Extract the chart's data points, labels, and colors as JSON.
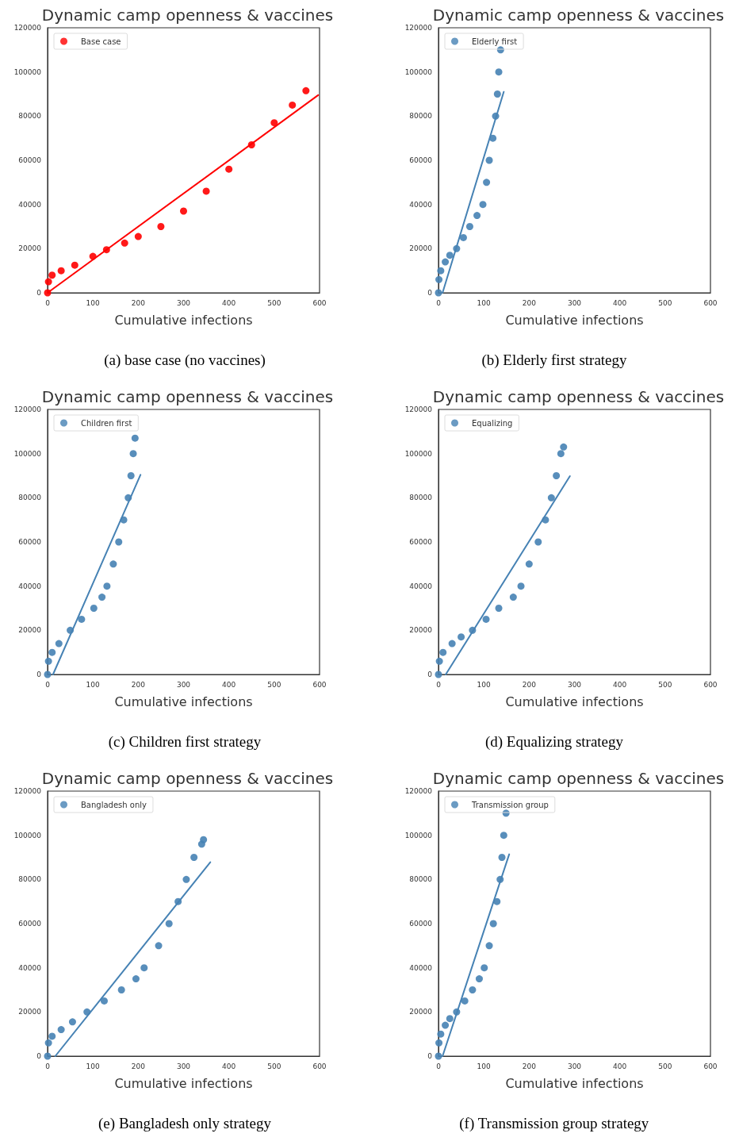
{
  "chart_data": [
    {
      "type": "scatter",
      "title": "Dynamic camp openness & vaccines",
      "xlabel": "Cumulative infections",
      "annotations": [
        "(a) base case (no vaccines)"
      ],
      "xlim": [
        0,
        600
      ],
      "ylim": [
        0,
        120000
      ],
      "xticks": [
        0,
        100,
        200,
        300,
        400,
        500,
        600
      ],
      "yticks": [
        0,
        20000,
        40000,
        60000,
        80000,
        100000,
        120000
      ],
      "grid": false,
      "legend": "top left",
      "marker": "circle",
      "series": [
        {
          "name": "Base case",
          "color": "#ff0000",
          "x": [
            0,
            2,
            10,
            30,
            60,
            100,
            130,
            170,
            200,
            250,
            300,
            350,
            400,
            450,
            500,
            540,
            570
          ],
          "values": [
            0,
            5000,
            8000,
            10000,
            12500,
            16500,
            19500,
            22500,
            25500,
            30000,
            37000,
            46000,
            56000,
            67000,
            77000,
            85000,
            91500
          ]
        },
        {
          "type": "line",
          "color": "#ff0000",
          "marker": "none",
          "line_style": "solid",
          "x": [
            0,
            597
          ],
          "values": [
            0,
            89500
          ]
        }
      ]
    },
    {
      "type": "scatter",
      "title": "Dynamic camp openness & vaccines",
      "xlabel": "Cumulative infections",
      "annotations": [
        "(b) Elderly first strategy"
      ],
      "xlim": [
        0,
        600
      ],
      "ylim": [
        0,
        120000
      ],
      "xticks": [
        0,
        100,
        200,
        300,
        400,
        500,
        600
      ],
      "yticks": [
        0,
        20000,
        40000,
        60000,
        80000,
        100000,
        120000
      ],
      "grid": false,
      "legend": "top left",
      "marker": "circle",
      "series": [
        {
          "name": "Elderly first",
          "color": "#4682b4",
          "x": [
            0,
            1,
            5,
            15,
            25,
            40,
            55,
            69,
            85,
            98,
            106,
            112,
            120,
            126,
            130,
            133,
            137
          ],
          "values": [
            0,
            6000,
            10000,
            14000,
            17000,
            20000,
            25000,
            30000,
            35000,
            40000,
            50000,
            60000,
            70000,
            80000,
            90000,
            100000,
            110000
          ]
        },
        {
          "type": "line",
          "color": "#4682b4",
          "marker": "none",
          "line_style": "solid",
          "x": [
            9,
            144
          ],
          "values": [
            0,
            91000
          ]
        }
      ]
    },
    {
      "type": "scatter",
      "title": "Dynamic camp openness & vaccines",
      "xlabel": "Cumulative infections",
      "annotations": [
        "(c) Children first strategy"
      ],
      "xlim": [
        0,
        600
      ],
      "ylim": [
        0,
        120000
      ],
      "xticks": [
        0,
        100,
        200,
        300,
        400,
        500,
        600
      ],
      "yticks": [
        0,
        20000,
        40000,
        60000,
        80000,
        100000,
        120000
      ],
      "grid": false,
      "legend": "top left",
      "marker": "circle",
      "series": [
        {
          "name": "Children first",
          "color": "#4682b4",
          "x": [
            0,
            2,
            10,
            25,
            50,
            75,
            102,
            120,
            131,
            145,
            157,
            168,
            178,
            184,
            189,
            193
          ],
          "values": [
            0,
            6000,
            10000,
            14000,
            20000,
            25000,
            30000,
            35000,
            40000,
            50000,
            60000,
            70000,
            80000,
            90000,
            100000,
            107000
          ]
        },
        {
          "type": "line",
          "color": "#4682b4",
          "marker": "none",
          "line_style": "solid",
          "x": [
            12,
            205
          ],
          "values": [
            0,
            90400
          ]
        }
      ]
    },
    {
      "type": "scatter",
      "title": "Dynamic camp openness & vaccines",
      "xlabel": "Cumulative infections",
      "annotations": [
        "(d) Equalizing strategy"
      ],
      "xlim": [
        0,
        600
      ],
      "ylim": [
        0,
        120000
      ],
      "xticks": [
        0,
        100,
        200,
        300,
        400,
        500,
        600
      ],
      "yticks": [
        0,
        20000,
        40000,
        60000,
        80000,
        100000,
        120000
      ],
      "grid": false,
      "legend": "top left",
      "marker": "circle",
      "series": [
        {
          "name": "Equalizing",
          "color": "#4682b4",
          "x": [
            0,
            2,
            10,
            30,
            50,
            75,
            105,
            133,
            165,
            182,
            200,
            220,
            236,
            249,
            260,
            270,
            276
          ],
          "values": [
            0,
            6000,
            10000,
            14000,
            17000,
            20000,
            25000,
            30000,
            35000,
            40000,
            50000,
            60000,
            70000,
            80000,
            90000,
            100000,
            103000
          ]
        },
        {
          "type": "line",
          "color": "#4682b4",
          "marker": "none",
          "line_style": "solid",
          "x": [
            16,
            290
          ],
          "values": [
            0,
            89800
          ]
        }
      ]
    },
    {
      "type": "scatter",
      "title": "Dynamic camp openness & vaccines",
      "xlabel": "Cumulative infections",
      "annotations": [
        "(e) Bangladesh only strategy"
      ],
      "xlim": [
        0,
        600
      ],
      "ylim": [
        0,
        120000
      ],
      "xticks": [
        0,
        100,
        200,
        300,
        400,
        500,
        600
      ],
      "yticks": [
        0,
        20000,
        40000,
        60000,
        80000,
        100000,
        120000
      ],
      "grid": false,
      "legend": "top left",
      "marker": "circle",
      "series": [
        {
          "name": "Bangladesh only",
          "color": "#4682b4",
          "x": [
            0,
            2,
            10,
            30,
            55,
            87,
            125,
            163,
            195,
            213,
            245,
            268,
            288,
            306,
            323,
            340,
            344
          ],
          "values": [
            0,
            6000,
            9000,
            12000,
            15500,
            20000,
            25000,
            30000,
            35000,
            40000,
            50000,
            60000,
            70000,
            80000,
            90000,
            96000,
            98000
          ]
        },
        {
          "type": "line",
          "color": "#4682b4",
          "marker": "none",
          "line_style": "solid",
          "x": [
            17,
            359
          ],
          "values": [
            0,
            87800
          ]
        }
      ]
    },
    {
      "type": "scatter",
      "title": "Dynamic camp openness & vaccines",
      "xlabel": "Cumulative infections",
      "annotations": [
        "(f) Transmission group strategy"
      ],
      "xlim": [
        0,
        600
      ],
      "ylim": [
        0,
        120000
      ],
      "xticks": [
        0,
        100,
        200,
        300,
        400,
        500,
        600
      ],
      "yticks": [
        0,
        20000,
        40000,
        60000,
        80000,
        100000,
        120000
      ],
      "grid": false,
      "legend": "top left",
      "marker": "circle",
      "series": [
        {
          "name": "Transmission group",
          "color": "#4682b4",
          "x": [
            0,
            1,
            5,
            15,
            25,
            40,
            58,
            75,
            90,
            101,
            112,
            121,
            129,
            136,
            140,
            144,
            149
          ],
          "values": [
            0,
            6000,
            10000,
            14000,
            17000,
            20000,
            25000,
            30000,
            35000,
            40000,
            50000,
            60000,
            70000,
            80000,
            90000,
            100000,
            110000
          ]
        },
        {
          "type": "line",
          "color": "#4682b4",
          "marker": "none",
          "line_style": "solid",
          "x": [
            9,
            156
          ],
          "values": [
            0,
            91400
          ]
        }
      ]
    }
  ]
}
